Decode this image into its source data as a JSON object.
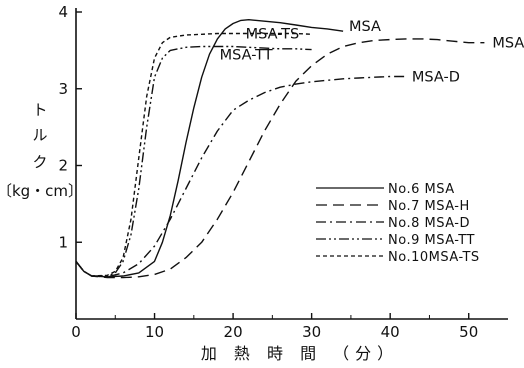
{
  "chart_data": {
    "type": "line",
    "xlabel": "加 熱 時 間 （分）",
    "ylabel_lines": [
      "ト",
      "ル",
      "ク",
      "〔kg・cm〕"
    ],
    "xlim": [
      0,
      55
    ],
    "ylim": [
      0,
      4
    ],
    "x_ticks": [
      "0",
      "10",
      "20",
      "30",
      "40",
      "50"
    ],
    "y_ticks": [
      "1",
      "2",
      "3",
      "4"
    ],
    "series": [
      {
        "name": "MSA",
        "legend": "No.6  MSA",
        "dash": "solid",
        "points": [
          [
            0,
            0.75
          ],
          [
            1,
            0.62
          ],
          [
            2,
            0.56
          ],
          [
            4,
            0.55
          ],
          [
            6,
            0.56
          ],
          [
            8,
            0.6
          ],
          [
            10,
            0.75
          ],
          [
            11,
            1.0
          ],
          [
            12,
            1.35
          ],
          [
            13,
            1.8
          ],
          [
            14,
            2.3
          ],
          [
            15,
            2.75
          ],
          [
            16,
            3.15
          ],
          [
            17,
            3.45
          ],
          [
            18,
            3.65
          ],
          [
            19,
            3.78
          ],
          [
            20,
            3.85
          ],
          [
            21,
            3.89
          ],
          [
            22,
            3.9
          ],
          [
            24,
            3.88
          ],
          [
            26,
            3.86
          ],
          [
            28,
            3.83
          ],
          [
            30,
            3.8
          ],
          [
            32,
            3.78
          ],
          [
            34,
            3.75
          ]
        ]
      },
      {
        "name": "MSA-H",
        "legend": "No.7  MSA-H",
        "dash": "longdash",
        "points": [
          [
            0,
            0.75
          ],
          [
            1,
            0.62
          ],
          [
            2,
            0.56
          ],
          [
            4,
            0.54
          ],
          [
            6,
            0.54
          ],
          [
            8,
            0.55
          ],
          [
            10,
            0.58
          ],
          [
            12,
            0.65
          ],
          [
            14,
            0.8
          ],
          [
            16,
            1.0
          ],
          [
            18,
            1.3
          ],
          [
            20,
            1.65
          ],
          [
            22,
            2.05
          ],
          [
            24,
            2.45
          ],
          [
            26,
            2.8
          ],
          [
            28,
            3.1
          ],
          [
            30,
            3.3
          ],
          [
            32,
            3.45
          ],
          [
            34,
            3.55
          ],
          [
            36,
            3.6
          ],
          [
            38,
            3.63
          ],
          [
            40,
            3.64
          ],
          [
            42,
            3.65
          ],
          [
            44,
            3.65
          ],
          [
            46,
            3.64
          ],
          [
            48,
            3.62
          ],
          [
            50,
            3.6
          ],
          [
            52,
            3.6
          ]
        ]
      },
      {
        "name": "MSA-D",
        "legend": "No.8  MSA-D",
        "dash": "dashdot",
        "points": [
          [
            0,
            0.75
          ],
          [
            1,
            0.62
          ],
          [
            2,
            0.56
          ],
          [
            4,
            0.55
          ],
          [
            6,
            0.6
          ],
          [
            8,
            0.72
          ],
          [
            10,
            0.95
          ],
          [
            12,
            1.3
          ],
          [
            14,
            1.7
          ],
          [
            16,
            2.1
          ],
          [
            18,
            2.45
          ],
          [
            20,
            2.72
          ],
          [
            22,
            2.85
          ],
          [
            24,
            2.95
          ],
          [
            26,
            3.02
          ],
          [
            28,
            3.06
          ],
          [
            30,
            3.09
          ],
          [
            32,
            3.11
          ],
          [
            34,
            3.13
          ],
          [
            36,
            3.14
          ],
          [
            38,
            3.15
          ],
          [
            40,
            3.16
          ],
          [
            42,
            3.16
          ]
        ]
      },
      {
        "name": "MSA-TT",
        "legend": "No.9  MSA-TT",
        "dash": "dashdotdot",
        "points": [
          [
            0,
            0.75
          ],
          [
            1,
            0.62
          ],
          [
            2,
            0.56
          ],
          [
            4,
            0.56
          ],
          [
            5,
            0.6
          ],
          [
            6,
            0.75
          ],
          [
            7,
            1.1
          ],
          [
            8,
            1.7
          ],
          [
            9,
            2.5
          ],
          [
            10,
            3.15
          ],
          [
            11,
            3.4
          ],
          [
            12,
            3.5
          ],
          [
            14,
            3.54
          ],
          [
            16,
            3.55
          ],
          [
            18,
            3.55
          ],
          [
            20,
            3.55
          ],
          [
            22,
            3.54
          ],
          [
            24,
            3.53
          ],
          [
            26,
            3.52
          ],
          [
            28,
            3.52
          ],
          [
            30,
            3.51
          ]
        ]
      },
      {
        "name": "MSA-TS",
        "legend": "No.10MSA-TS",
        "dash": "shortdash",
        "points": [
          [
            0,
            0.75
          ],
          [
            1,
            0.62
          ],
          [
            2,
            0.56
          ],
          [
            4,
            0.57
          ],
          [
            5,
            0.62
          ],
          [
            6,
            0.8
          ],
          [
            7,
            1.3
          ],
          [
            8,
            2.1
          ],
          [
            9,
            2.9
          ],
          [
            10,
            3.4
          ],
          [
            11,
            3.6
          ],
          [
            12,
            3.67
          ],
          [
            14,
            3.7
          ],
          [
            16,
            3.71
          ],
          [
            18,
            3.72
          ],
          [
            20,
            3.72
          ],
          [
            22,
            3.72
          ],
          [
            24,
            3.72
          ],
          [
            26,
            3.72
          ],
          [
            28,
            3.72
          ],
          [
            30,
            3.71
          ]
        ]
      }
    ],
    "legend_position": "bottom-right",
    "grid": false
  }
}
